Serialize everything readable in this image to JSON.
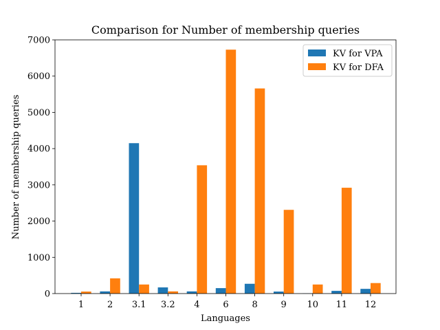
{
  "chart_data": {
    "type": "bar",
    "title": "Comparison for Number of membership queries",
    "xlabel": "Languages",
    "ylabel": "Number of membership queries",
    "categories": [
      "1",
      "2",
      "3.1",
      "3.2",
      "4",
      "6",
      "8",
      "9",
      "10",
      "11",
      "12"
    ],
    "ylim": [
      0,
      7000
    ],
    "yticks": [
      0,
      1000,
      2000,
      3000,
      4000,
      5000,
      6000,
      7000
    ],
    "grid": false,
    "legend_position": "top-right",
    "series": [
      {
        "name": "KV for VPA",
        "color": "#1f77b4",
        "values": [
          20,
          60,
          4150,
          170,
          60,
          150,
          270,
          55,
          5,
          75,
          130
        ]
      },
      {
        "name": "KV for DFA",
        "color": "#ff7f0e",
        "values": [
          55,
          420,
          250,
          60,
          3540,
          6730,
          5660,
          2310,
          250,
          2920,
          290
        ]
      }
    ]
  }
}
